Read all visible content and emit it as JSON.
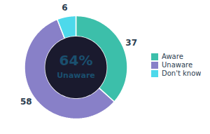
{
  "chart_data": {
    "type": "pie",
    "categories": [
      "Aware",
      "Unaware",
      "Don't know"
    ],
    "values": [
      37,
      58,
      6
    ],
    "colors": [
      "#3cbfaa",
      "#8880c8",
      "#4dd9eb"
    ],
    "data_labels": true,
    "annotations": [
      "64%",
      "Unaware"
    ],
    "legend": "right",
    "tick_labels": false
  }
}
